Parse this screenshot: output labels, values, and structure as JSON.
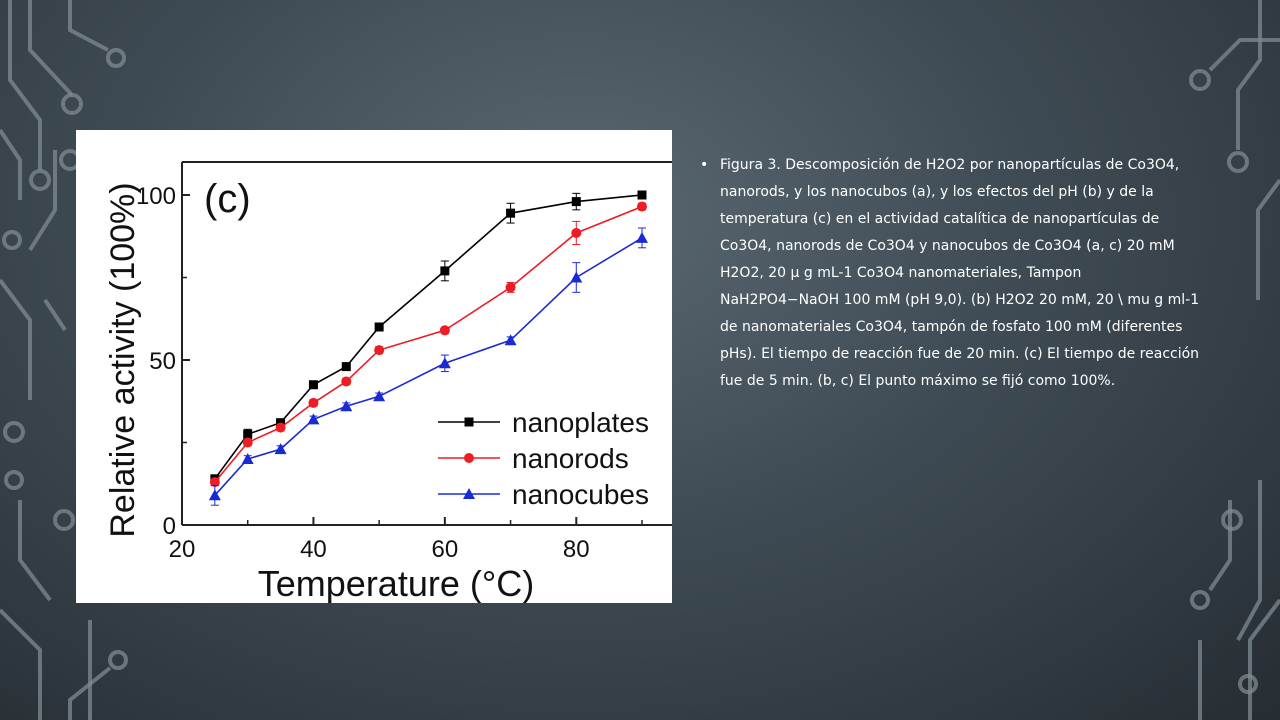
{
  "caption": {
    "bullet": "•",
    "text": "Figura 3. Descomposición de H2O2 por nanopartículas de Co3O4, nanorods, y los nanocubos (a), y los efectos del pH (b) y de la temperatura (c) en el actividad catalítica de nanopartículas de Co3O4, nanorods de Co3O4 y nanocubos de Co3O4 (a, c) 20 mM H2O2, 20 μ g mL-1 Co3O4 nanomateriales, Tampon NaH2PO4−NaOH 100 mM (pH 9,0). (b) H2O2 20 mM, 20 \\ mu g ml-1 de nanomateriales Co3O4, tampón de fosfato 100 mM (diferentes pHs). El tiempo de reacción fue de 20 min. (c) El tiempo de reacción fue de 5 min. (b, c) El punto máximo se fijó como 100%."
  },
  "chart_data": {
    "type": "line",
    "panel_label": "(c)",
    "xlabel": "Temperature (°C)",
    "ylabel": "Relative activity (100%)",
    "xlim": [
      20,
      90
    ],
    "ylim": [
      0,
      100
    ],
    "xticks": [
      20,
      40,
      60,
      80
    ],
    "yticks": [
      0,
      50,
      100
    ],
    "x_tick_labels": [
      "20",
      "40",
      "60",
      "80"
    ],
    "y_tick_labels": [
      "0",
      "50",
      "100"
    ],
    "legend_position": "bottom-right",
    "x": [
      25,
      30,
      35,
      40,
      45,
      50,
      60,
      70,
      80,
      90
    ],
    "series": [
      {
        "name": "nanoplates",
        "color": "#000000",
        "marker": "square",
        "values": [
          14,
          27.5,
          31,
          42.5,
          48,
          60,
          77,
          94.5,
          98,
          100
        ],
        "errors": [
          1,
          1.5,
          1,
          1,
          1,
          1,
          3,
          3,
          2.5,
          1
        ]
      },
      {
        "name": "nanorods",
        "color": "#ee1c25",
        "marker": "circle",
        "values": [
          13,
          25,
          29.5,
          37,
          43.5,
          53,
          59,
          72,
          88.5,
          96.5
        ],
        "errors": [
          1,
          1,
          1,
          1,
          1,
          1,
          1,
          1.5,
          3.5,
          1
        ]
      },
      {
        "name": "nanocubes",
        "color": "#1a2bd6",
        "marker": "triangle",
        "values": [
          9,
          20,
          23,
          32,
          36,
          39,
          49,
          56,
          75,
          87
        ],
        "errors": [
          3,
          1,
          1,
          1,
          1,
          1,
          2.5,
          1,
          4.5,
          3
        ]
      }
    ]
  }
}
